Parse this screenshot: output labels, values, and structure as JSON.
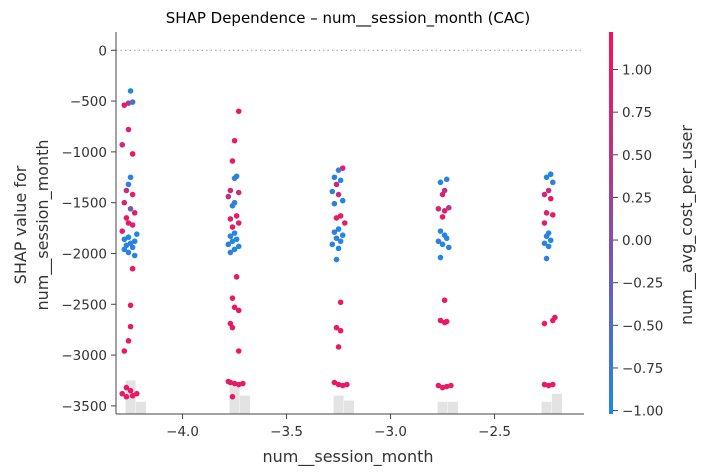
{
  "chart_data": {
    "type": "scatter",
    "title": "SHAP Dependence – num__session_month (CAC)",
    "xlabel": "num__session_month",
    "ylabel_lines": [
      "SHAP value for",
      "num__session_month"
    ],
    "colorbar_label": "num__avg_cost_per_user",
    "xlim": [
      -4.32,
      -2.07
    ],
    "ylim": [
      -3580,
      180
    ],
    "xticks": [
      -4.0,
      -3.5,
      -3.0,
      -2.5
    ],
    "xtick_labels": [
      "−4.0",
      "−3.5",
      "−3.0",
      "−2.5"
    ],
    "yticks": [
      0,
      -500,
      -1000,
      -1500,
      -2000,
      -2500,
      -3000,
      -3500
    ],
    "ytick_labels": [
      "0",
      "−500",
      "−1000",
      "−1500",
      "−2000",
      "−2500",
      "−3000",
      "−3500"
    ],
    "colorbar_range": [
      -1.02,
      1.22
    ],
    "colorbar_ticks": [
      1.0,
      0.75,
      0.5,
      0.25,
      0.0,
      -0.25,
      -0.5,
      -0.75,
      -1.0
    ],
    "colorbar_tick_labels": [
      "1.00",
      "0.75",
      "0.50",
      "0.25",
      "0.00",
      "−0.25",
      "−0.50",
      "−0.75",
      "−1.00"
    ],
    "colors": {
      "low": "#1E88E5",
      "high": "#FF0D57"
    },
    "grid": false,
    "zero_line": true,
    "x_categories": [
      -4.25,
      -3.75,
      -3.25,
      -2.75,
      -2.25
    ],
    "histogram": {
      "bars": [
        {
          "x": -4.25,
          "height": 0.55
        },
        {
          "x": -4.2,
          "height": 0.2
        },
        {
          "x": -3.75,
          "height": 0.45
        },
        {
          "x": -3.7,
          "height": 0.3
        },
        {
          "x": -3.25,
          "height": 0.3
        },
        {
          "x": -3.2,
          "height": 0.22
        },
        {
          "x": -2.75,
          "height": 0.2
        },
        {
          "x": -2.7,
          "height": 0.2
        },
        {
          "x": -2.25,
          "height": 0.2
        },
        {
          "x": -2.2,
          "height": 0.33
        }
      ]
    },
    "points": [
      {
        "x": -4.25,
        "y": -400,
        "c": -1.0
      },
      {
        "x": -4.26,
        "y": -520,
        "c": 0.2
      },
      {
        "x": -4.28,
        "y": -540,
        "c": 1.0
      },
      {
        "x": -4.24,
        "y": -510,
        "c": -0.6
      },
      {
        "x": -4.26,
        "y": -780,
        "c": 0.8
      },
      {
        "x": -4.29,
        "y": -930,
        "c": 0.7
      },
      {
        "x": -4.24,
        "y": -1020,
        "c": 1.0
      },
      {
        "x": -4.25,
        "y": -1250,
        "c": -0.9
      },
      {
        "x": -4.26,
        "y": -1320,
        "c": -0.9
      },
      {
        "x": -4.27,
        "y": -1380,
        "c": 0.6
      },
      {
        "x": -4.24,
        "y": -1420,
        "c": 0.9
      },
      {
        "x": -4.28,
        "y": -1500,
        "c": 0.8
      },
      {
        "x": -4.25,
        "y": -1560,
        "c": -0.2
      },
      {
        "x": -4.23,
        "y": -1600,
        "c": 0.9
      },
      {
        "x": -4.27,
        "y": -1650,
        "c": 1.0
      },
      {
        "x": -4.26,
        "y": -1700,
        "c": 1.0
      },
      {
        "x": -4.24,
        "y": -1720,
        "c": 0.8
      },
      {
        "x": -4.29,
        "y": -1780,
        "c": 0.9
      },
      {
        "x": -4.22,
        "y": -1810,
        "c": -1.0
      },
      {
        "x": -4.26,
        "y": -1840,
        "c": -1.0
      },
      {
        "x": -4.28,
        "y": -1860,
        "c": -0.9
      },
      {
        "x": -4.23,
        "y": -1880,
        "c": -1.0
      },
      {
        "x": -4.25,
        "y": -1900,
        "c": -0.8
      },
      {
        "x": -4.27,
        "y": -1920,
        "c": -1.0
      },
      {
        "x": -4.24,
        "y": -1940,
        "c": -0.9
      },
      {
        "x": -4.28,
        "y": -1960,
        "c": -1.0
      },
      {
        "x": -4.26,
        "y": -1990,
        "c": -0.9
      },
      {
        "x": -4.23,
        "y": -2020,
        "c": -1.0
      },
      {
        "x": -4.24,
        "y": -2150,
        "c": 1.0
      },
      {
        "x": -4.25,
        "y": -2510,
        "c": 1.0
      },
      {
        "x": -4.25,
        "y": -2720,
        "c": 1.0
      },
      {
        "x": -4.26,
        "y": -2860,
        "c": 1.0
      },
      {
        "x": -4.28,
        "y": -2960,
        "c": 1.0
      },
      {
        "x": -4.27,
        "y": -3320,
        "c": 1.0
      },
      {
        "x": -4.25,
        "y": -3350,
        "c": 1.0
      },
      {
        "x": -4.29,
        "y": -3380,
        "c": 0.9
      },
      {
        "x": -4.24,
        "y": -3400,
        "c": 1.0
      },
      {
        "x": -4.22,
        "y": -3380,
        "c": 1.0
      },
      {
        "x": -4.27,
        "y": -3410,
        "c": 1.0
      },
      {
        "x": -3.73,
        "y": -600,
        "c": 1.0
      },
      {
        "x": -3.75,
        "y": -890,
        "c": 1.0
      },
      {
        "x": -3.76,
        "y": -1090,
        "c": 1.0
      },
      {
        "x": -3.74,
        "y": -1240,
        "c": -0.9
      },
      {
        "x": -3.75,
        "y": -1260,
        "c": -0.9
      },
      {
        "x": -3.77,
        "y": -1380,
        "c": 0.8
      },
      {
        "x": -3.73,
        "y": -1400,
        "c": 0.6
      },
      {
        "x": -3.78,
        "y": -1440,
        "c": 0.5
      },
      {
        "x": -3.75,
        "y": -1500,
        "c": -0.8
      },
      {
        "x": -3.76,
        "y": -1530,
        "c": -0.9
      },
      {
        "x": -3.74,
        "y": -1630,
        "c": 1.0
      },
      {
        "x": -3.77,
        "y": -1660,
        "c": 1.0
      },
      {
        "x": -3.73,
        "y": -1700,
        "c": 0.9
      },
      {
        "x": -3.76,
        "y": -1740,
        "c": 1.0
      },
      {
        "x": -3.75,
        "y": -1800,
        "c": -1.0
      },
      {
        "x": -3.77,
        "y": -1830,
        "c": -0.9
      },
      {
        "x": -3.74,
        "y": -1860,
        "c": -1.0
      },
      {
        "x": -3.76,
        "y": -1880,
        "c": -1.0
      },
      {
        "x": -3.78,
        "y": -1910,
        "c": -0.9
      },
      {
        "x": -3.73,
        "y": -1930,
        "c": -1.0
      },
      {
        "x": -3.75,
        "y": -1960,
        "c": -1.0
      },
      {
        "x": -3.77,
        "y": -1990,
        "c": -0.8
      },
      {
        "x": -3.74,
        "y": -2230,
        "c": 1.0
      },
      {
        "x": -3.76,
        "y": -2440,
        "c": 1.0
      },
      {
        "x": -3.75,
        "y": -2530,
        "c": 1.0
      },
      {
        "x": -3.73,
        "y": -2560,
        "c": 1.0
      },
      {
        "x": -3.77,
        "y": -2690,
        "c": 1.0
      },
      {
        "x": -3.76,
        "y": -2730,
        "c": 1.0
      },
      {
        "x": -3.73,
        "y": -2960,
        "c": 1.0
      },
      {
        "x": -3.77,
        "y": -3270,
        "c": 1.0
      },
      {
        "x": -3.75,
        "y": -3280,
        "c": 1.0
      },
      {
        "x": -3.73,
        "y": -3290,
        "c": 0.9
      },
      {
        "x": -3.71,
        "y": -3280,
        "c": 1.0
      },
      {
        "x": -3.78,
        "y": -3260,
        "c": 1.0
      },
      {
        "x": -3.76,
        "y": -3410,
        "c": 1.0
      },
      {
        "x": -3.23,
        "y": -1160,
        "c": 1.0
      },
      {
        "x": -3.25,
        "y": -1180,
        "c": -0.9
      },
      {
        "x": -3.27,
        "y": -1250,
        "c": -0.9
      },
      {
        "x": -3.24,
        "y": -1280,
        "c": -1.0
      },
      {
        "x": -3.26,
        "y": -1320,
        "c": 0.7
      },
      {
        "x": -3.28,
        "y": -1390,
        "c": -0.9
      },
      {
        "x": -3.25,
        "y": -1420,
        "c": 0.6
      },
      {
        "x": -3.23,
        "y": -1480,
        "c": -1.0
      },
      {
        "x": -3.27,
        "y": -1510,
        "c": -0.9
      },
      {
        "x": -3.24,
        "y": -1630,
        "c": 1.0
      },
      {
        "x": -3.26,
        "y": -1650,
        "c": 1.0
      },
      {
        "x": -3.22,
        "y": -1700,
        "c": 0.9
      },
      {
        "x": -3.25,
        "y": -1760,
        "c": -1.0
      },
      {
        "x": -3.27,
        "y": -1790,
        "c": -0.8
      },
      {
        "x": -3.23,
        "y": -1820,
        "c": -1.0
      },
      {
        "x": -3.26,
        "y": -1850,
        "c": -0.9
      },
      {
        "x": -3.24,
        "y": -1880,
        "c": -1.0
      },
      {
        "x": -3.28,
        "y": -1910,
        "c": -0.9
      },
      {
        "x": -3.25,
        "y": -1950,
        "c": -1.0
      },
      {
        "x": -3.26,
        "y": -2060,
        "c": -0.9
      },
      {
        "x": -3.24,
        "y": -2480,
        "c": 1.0
      },
      {
        "x": -3.26,
        "y": -2730,
        "c": 1.0
      },
      {
        "x": -3.24,
        "y": -2760,
        "c": 1.0
      },
      {
        "x": -3.25,
        "y": -2920,
        "c": 1.0
      },
      {
        "x": -3.27,
        "y": -3270,
        "c": 1.0
      },
      {
        "x": -3.25,
        "y": -3290,
        "c": 1.0
      },
      {
        "x": -3.23,
        "y": -3300,
        "c": 1.0
      },
      {
        "x": -3.21,
        "y": -3290,
        "c": 1.0
      },
      {
        "x": -2.73,
        "y": -1270,
        "c": -0.9
      },
      {
        "x": -2.76,
        "y": -1300,
        "c": -1.0
      },
      {
        "x": -2.74,
        "y": -1380,
        "c": 0.6
      },
      {
        "x": -2.75,
        "y": -1420,
        "c": 0.8
      },
      {
        "x": -2.72,
        "y": -1550,
        "c": 0.5
      },
      {
        "x": -2.74,
        "y": -1580,
        "c": 0.9
      },
      {
        "x": -2.77,
        "y": -1560,
        "c": 0.7
      },
      {
        "x": -2.75,
        "y": -1640,
        "c": 1.0
      },
      {
        "x": -2.76,
        "y": -1780,
        "c": -1.0
      },
      {
        "x": -2.74,
        "y": -1820,
        "c": -0.9
      },
      {
        "x": -2.73,
        "y": -1850,
        "c": -1.0
      },
      {
        "x": -2.77,
        "y": -1880,
        "c": -0.8
      },
      {
        "x": -2.75,
        "y": -1910,
        "c": -1.0
      },
      {
        "x": -2.72,
        "y": -1940,
        "c": -0.9
      },
      {
        "x": -2.76,
        "y": -2040,
        "c": -1.0
      },
      {
        "x": -2.74,
        "y": -2460,
        "c": 1.0
      },
      {
        "x": -2.76,
        "y": -2660,
        "c": 1.0
      },
      {
        "x": -2.74,
        "y": -2680,
        "c": 1.0
      },
      {
        "x": -2.73,
        "y": -2670,
        "c": 1.0
      },
      {
        "x": -2.77,
        "y": -3300,
        "c": 1.0
      },
      {
        "x": -2.75,
        "y": -3320,
        "c": 1.0
      },
      {
        "x": -2.73,
        "y": -3310,
        "c": 1.0
      },
      {
        "x": -2.71,
        "y": -3300,
        "c": 1.0
      },
      {
        "x": -2.23,
        "y": -1220,
        "c": -0.9
      },
      {
        "x": -2.25,
        "y": -1250,
        "c": -1.0
      },
      {
        "x": -2.22,
        "y": -1300,
        "c": -0.8
      },
      {
        "x": -2.24,
        "y": -1380,
        "c": 0.6
      },
      {
        "x": -2.26,
        "y": -1420,
        "c": 0.8
      },
      {
        "x": -2.23,
        "y": -1460,
        "c": 1.0
      },
      {
        "x": -2.25,
        "y": -1600,
        "c": 0.9
      },
      {
        "x": -2.22,
        "y": -1620,
        "c": 1.0
      },
      {
        "x": -2.26,
        "y": -1700,
        "c": 0.9
      },
      {
        "x": -2.24,
        "y": -1800,
        "c": -1.0
      },
      {
        "x": -2.25,
        "y": -1830,
        "c": -0.9
      },
      {
        "x": -2.23,
        "y": -1870,
        "c": -1.0
      },
      {
        "x": -2.26,
        "y": -1900,
        "c": -0.9
      },
      {
        "x": -2.24,
        "y": -1930,
        "c": -1.0
      },
      {
        "x": -2.25,
        "y": -2050,
        "c": -0.9
      },
      {
        "x": -2.21,
        "y": -2630,
        "c": 1.0
      },
      {
        "x": -2.22,
        "y": -2660,
        "c": 1.0
      },
      {
        "x": -2.26,
        "y": -2690,
        "c": 1.0
      },
      {
        "x": -2.26,
        "y": -3290,
        "c": 1.0
      },
      {
        "x": -2.24,
        "y": -3300,
        "c": 1.0
      },
      {
        "x": -2.22,
        "y": -3290,
        "c": 1.0
      }
    ]
  }
}
